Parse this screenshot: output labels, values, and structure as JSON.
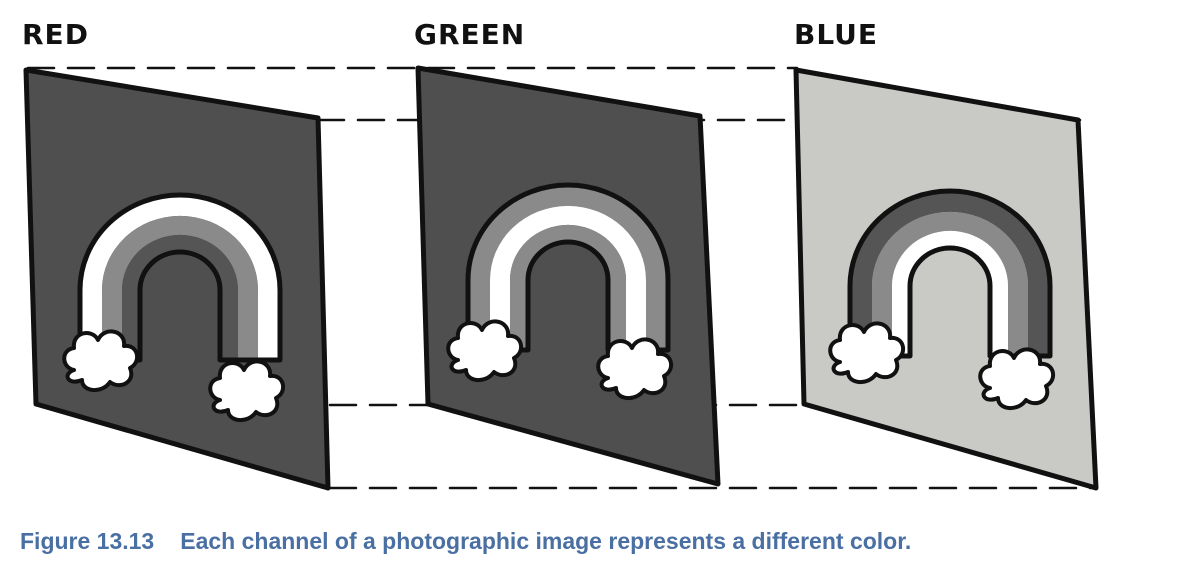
{
  "panels": [
    {
      "title": "RED",
      "panel_fill": "#4f4f4f",
      "rainbow_bands": [
        "#ffffff",
        "#8a8a8a",
        "#555555"
      ]
    },
    {
      "title": "GREEN",
      "panel_fill": "#4f4f4f",
      "rainbow_bands": [
        "#8a8a8a",
        "#ffffff",
        "#8a8a8a"
      ]
    },
    {
      "title": "BLUE",
      "panel_fill": "#c9c9c6",
      "rainbow_bands": [
        "#555555",
        "#8a8a8a",
        "#ffffff"
      ]
    }
  ],
  "caption": {
    "figure_number": "Figure 13.13",
    "text": "Each channel of a photographic image represents a different color."
  },
  "colors": {
    "outline": "#111111",
    "cloud": "#ffffff",
    "caption": "#4a6fa2"
  }
}
